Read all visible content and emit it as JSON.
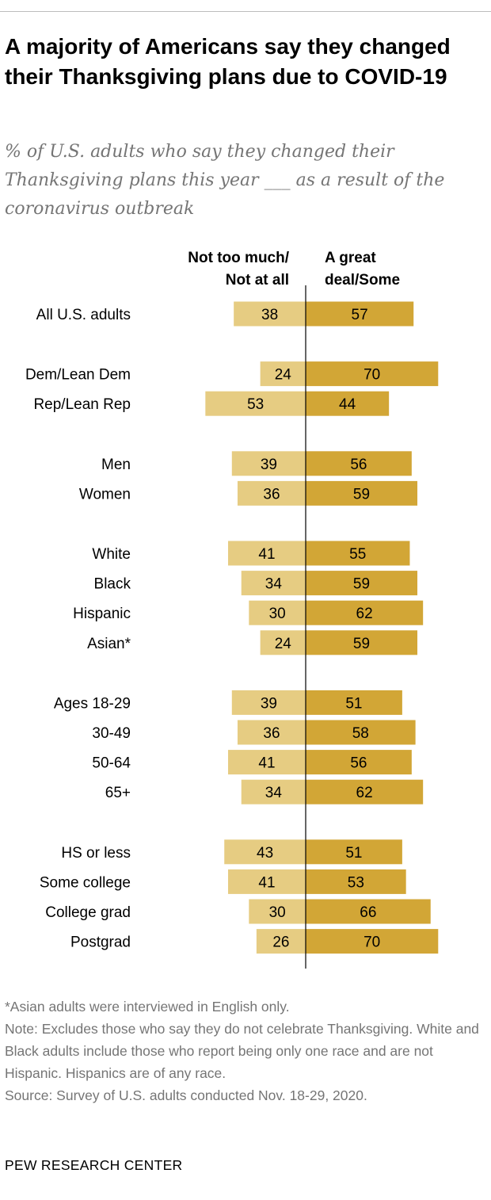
{
  "title": "A majority of Americans say they changed their Thanksgiving plans due to COVID-19",
  "subtitle": "% of U.S. adults who say they changed their Thanksgiving plans this year ___ as a result of the coronavirus outbreak",
  "colors": {
    "not_much": "#e6cc82",
    "great_deal": "#d2a636",
    "axis": "#000000"
  },
  "chart_data": {
    "type": "bar",
    "orientation": "diverging-horizontal",
    "series": [
      {
        "name": "Not too much/ Not at all",
        "header_lines": [
          "Not too much/",
          "Not at all"
        ],
        "side": "left"
      },
      {
        "name": "A great deal/Some",
        "header_lines": [
          "A great",
          "deal/Some"
        ],
        "side": "right"
      }
    ],
    "groups": [
      {
        "rows": [
          {
            "label": "All U.S. adults",
            "left": 38,
            "right": 57
          }
        ]
      },
      {
        "rows": [
          {
            "label": "Dem/Lean Dem",
            "left": 24,
            "right": 70
          },
          {
            "label": "Rep/Lean Rep",
            "left": 53,
            "right": 44
          }
        ]
      },
      {
        "rows": [
          {
            "label": "Men",
            "left": 39,
            "right": 56
          },
          {
            "label": "Women",
            "left": 36,
            "right": 59
          }
        ]
      },
      {
        "rows": [
          {
            "label": "White",
            "left": 41,
            "right": 55
          },
          {
            "label": "Black",
            "left": 34,
            "right": 59
          },
          {
            "label": "Hispanic",
            "left": 30,
            "right": 62
          },
          {
            "label": "Asian*",
            "left": 24,
            "right": 59
          }
        ]
      },
      {
        "rows": [
          {
            "label": "Ages 18-29",
            "left": 39,
            "right": 51
          },
          {
            "label": "30-49",
            "left": 36,
            "right": 58
          },
          {
            "label": "50-64",
            "left": 41,
            "right": 56
          },
          {
            "label": "65+",
            "left": 34,
            "right": 62
          }
        ]
      },
      {
        "rows": [
          {
            "label": "HS or less",
            "left": 43,
            "right": 51
          },
          {
            "label": "Some college",
            "left": 41,
            "right": 53
          },
          {
            "label": "College grad",
            "left": 30,
            "right": 66
          },
          {
            "label": "Postgrad",
            "left": 26,
            "right": 70
          }
        ]
      }
    ]
  },
  "footnotes": {
    "asterisk": "*Asian adults were interviewed in English only.",
    "note": "Note: Excludes those who say they do not celebrate Thanksgiving. White and Black adults include those who report being only one race and are not Hispanic. Hispanics are of any race.",
    "source": "Source: Survey of U.S. adults conducted Nov. 18-29, 2020."
  },
  "source_org": "PEW RESEARCH CENTER"
}
